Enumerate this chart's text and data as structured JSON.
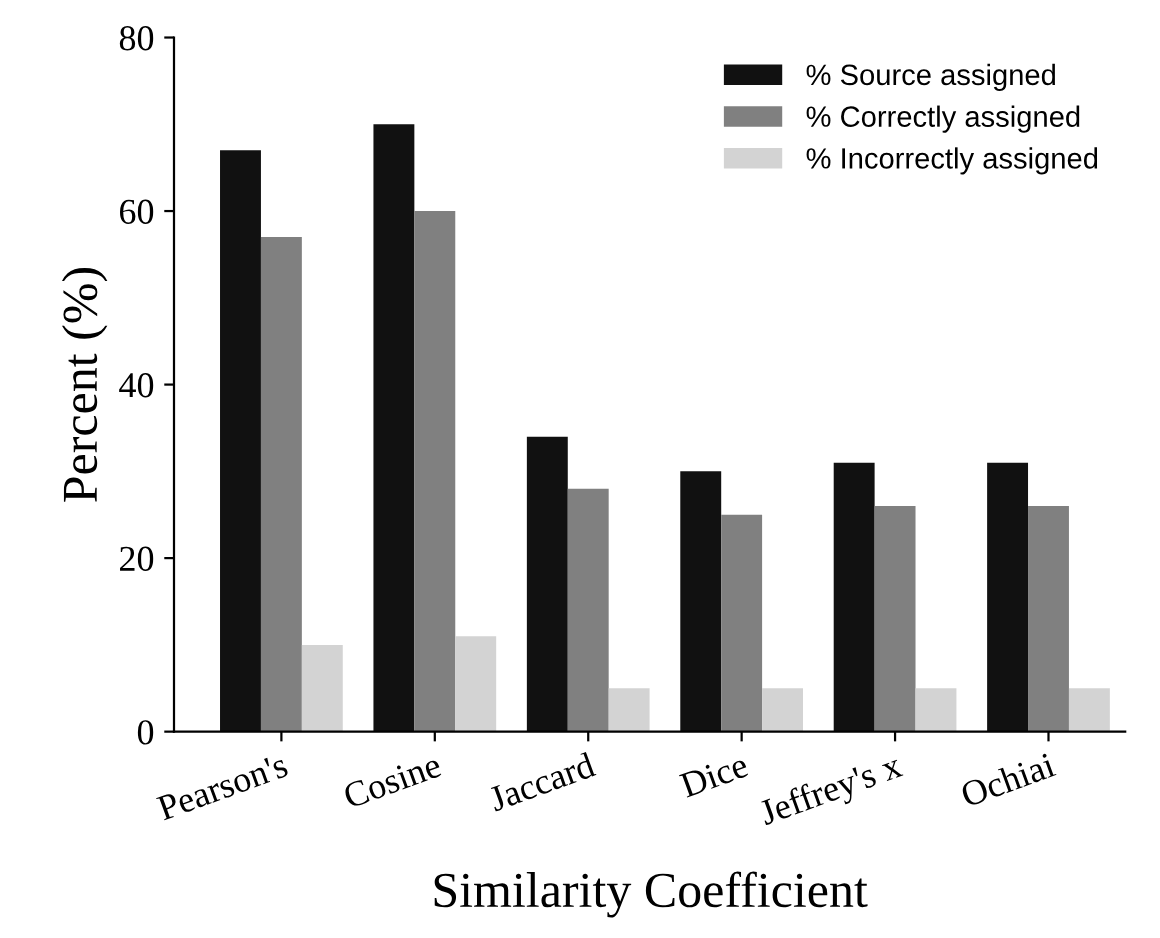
{
  "chart_data": {
    "type": "bar",
    "xlabel": "Similarity Coefficient",
    "ylabel": "Percent (%)",
    "categories": [
      "Pearson's",
      "Cosine",
      "Jaccard",
      "Dice",
      "Jeffrey's x",
      "Ochiai"
    ],
    "series": [
      {
        "name": "% Source assigned",
        "color": "#111111",
        "values": [
          67,
          70,
          34,
          30,
          31,
          31
        ]
      },
      {
        "name": "% Correctly assigned",
        "color": "#808080",
        "values": [
          57,
          60,
          28,
          25,
          26,
          26
        ]
      },
      {
        "name": "% Incorrectly assigned",
        "color": "#d3d3d3",
        "values": [
          10,
          11,
          5,
          5,
          5,
          5
        ]
      }
    ],
    "ylim": [
      0,
      80
    ],
    "yticks": [
      0,
      20,
      40,
      60,
      80
    ],
    "legend": "top right",
    "grid": false
  }
}
